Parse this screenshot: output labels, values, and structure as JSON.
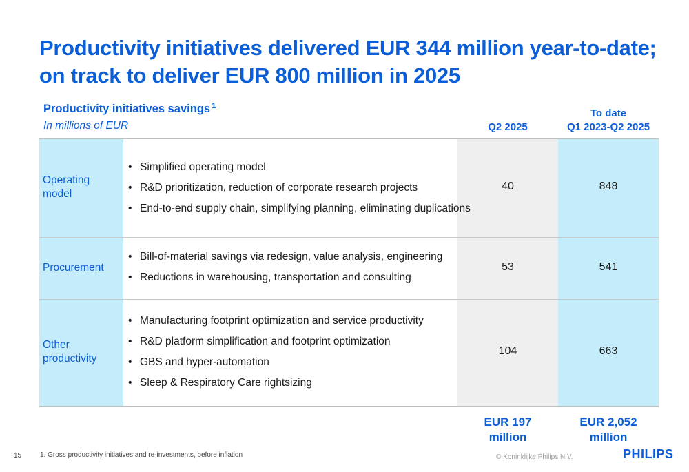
{
  "title": "Productivity initiatives delivered EUR 344 million year-to-date; on track to deliver EUR 800 million in 2025",
  "table": {
    "title": "Productivity initiatives savings",
    "footnote_marker": "1",
    "subtitle": "In millions of EUR",
    "columns": {
      "q2": "Q2 2025",
      "to_date_line1": "To date",
      "to_date_line2": "Q1 2023-Q2 2025"
    },
    "rows": [
      {
        "label": "Operating model",
        "bullets": [
          "Simplified operating model",
          "R&D prioritization, reduction of corporate research projects",
          "End-to-end supply chain, simplifying planning, eliminating duplications"
        ],
        "q2": "40",
        "to_date": "848"
      },
      {
        "label": "Procurement",
        "bullets": [
          "Bill-of-material savings via redesign, value analysis, engineering",
          "Reductions in warehousing, transportation and consulting"
        ],
        "q2": "53",
        "to_date": "541"
      },
      {
        "label": "Other productivity",
        "bullets": [
          "Manufacturing footprint optimization and service productivity",
          "R&D platform simplification and footprint optimization",
          "GBS and hyper-automation",
          "Sleep & Respiratory Care rightsizing"
        ],
        "q2": "104",
        "to_date": "663"
      }
    ],
    "totals": {
      "q2_line1": "EUR 197",
      "q2_line2": "million",
      "to_date_line1": "EUR 2,052",
      "to_date_line2": "million"
    }
  },
  "footer": {
    "page_number": "15",
    "footnote": "1. Gross productivity initiatives and re-investments, before inflation",
    "copyright": "© Koninklijke Philips N.V.",
    "logo": "PHILIPS"
  },
  "colors": {
    "brand_blue": "#0b5ed7",
    "light_blue": "#c5ecfb",
    "light_gray": "#efefef"
  }
}
